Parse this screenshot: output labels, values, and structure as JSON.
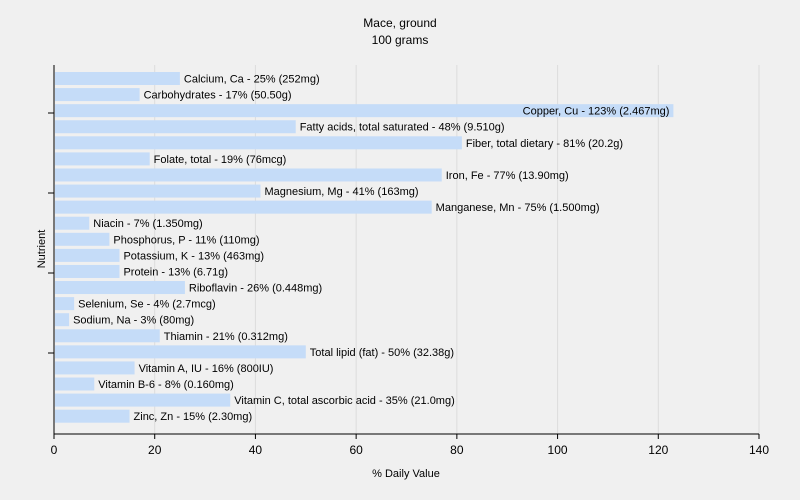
{
  "chart_data": {
    "type": "bar",
    "orientation": "horizontal",
    "title": "Mace, ground",
    "subtitle": "100 grams",
    "xlabel": "% Daily Value",
    "ylabel": "Nutrient",
    "xlim": [
      0,
      140
    ],
    "x_ticks": [
      "0",
      "20",
      "40",
      "60",
      "80",
      "100",
      "120",
      "140"
    ],
    "grid": "vertical",
    "colors": {
      "bar": "#c5dcf8",
      "grid": "#dcdcdc",
      "background": "#f0f0f0"
    },
    "categories": [
      "Calcium, Ca",
      "Carbohydrates",
      "Copper, Cu",
      "Fatty acids, total saturated",
      "Fiber, total dietary",
      "Folate, total",
      "Iron, Fe",
      "Magnesium, Mg",
      "Manganese, Mn",
      "Niacin",
      "Phosphorus, P",
      "Potassium, K",
      "Protein",
      "Riboflavin",
      "Selenium, Se",
      "Sodium, Na",
      "Thiamin",
      "Total lipid (fat)",
      "Vitamin A, IU",
      "Vitamin B-6",
      "Vitamin C, total ascorbic acid",
      "Zinc, Zn"
    ],
    "values": [
      25,
      17,
      123,
      48,
      81,
      19,
      77,
      41,
      75,
      7,
      11,
      13,
      13,
      26,
      4,
      3,
      21,
      50,
      16,
      8,
      35,
      15
    ],
    "labels": [
      "Calcium, Ca - 25% (252mg)",
      "Carbohydrates - 17% (50.50g)",
      "Copper, Cu - 123% (2.467mg)",
      "Fatty acids, total saturated - 48% (9.510g)",
      "Fiber, total dietary - 81% (20.2g)",
      "Folate, total - 19% (76mcg)",
      "Iron, Fe - 77% (13.90mg)",
      "Magnesium, Mg - 41% (163mg)",
      "Manganese, Mn - 75% (1.500mg)",
      "Niacin - 7% (1.350mg)",
      "Phosphorus, P - 11% (110mg)",
      "Potassium, K - 13% (463mg)",
      "Protein - 13% (6.71g)",
      "Riboflavin - 26% (0.448mg)",
      "Selenium, Se - 4% (2.7mcg)",
      "Sodium, Na - 3% (80mg)",
      "Thiamin - 21% (0.312mg)",
      "Total lipid (fat) - 50% (32.38g)",
      "Vitamin A, IU - 16% (800IU)",
      "Vitamin B-6 - 8% (0.160mg)",
      "Vitamin C, total ascorbic acid - 35% (21.0mg)",
      "Zinc, Zn - 15% (2.30mg)"
    ]
  }
}
